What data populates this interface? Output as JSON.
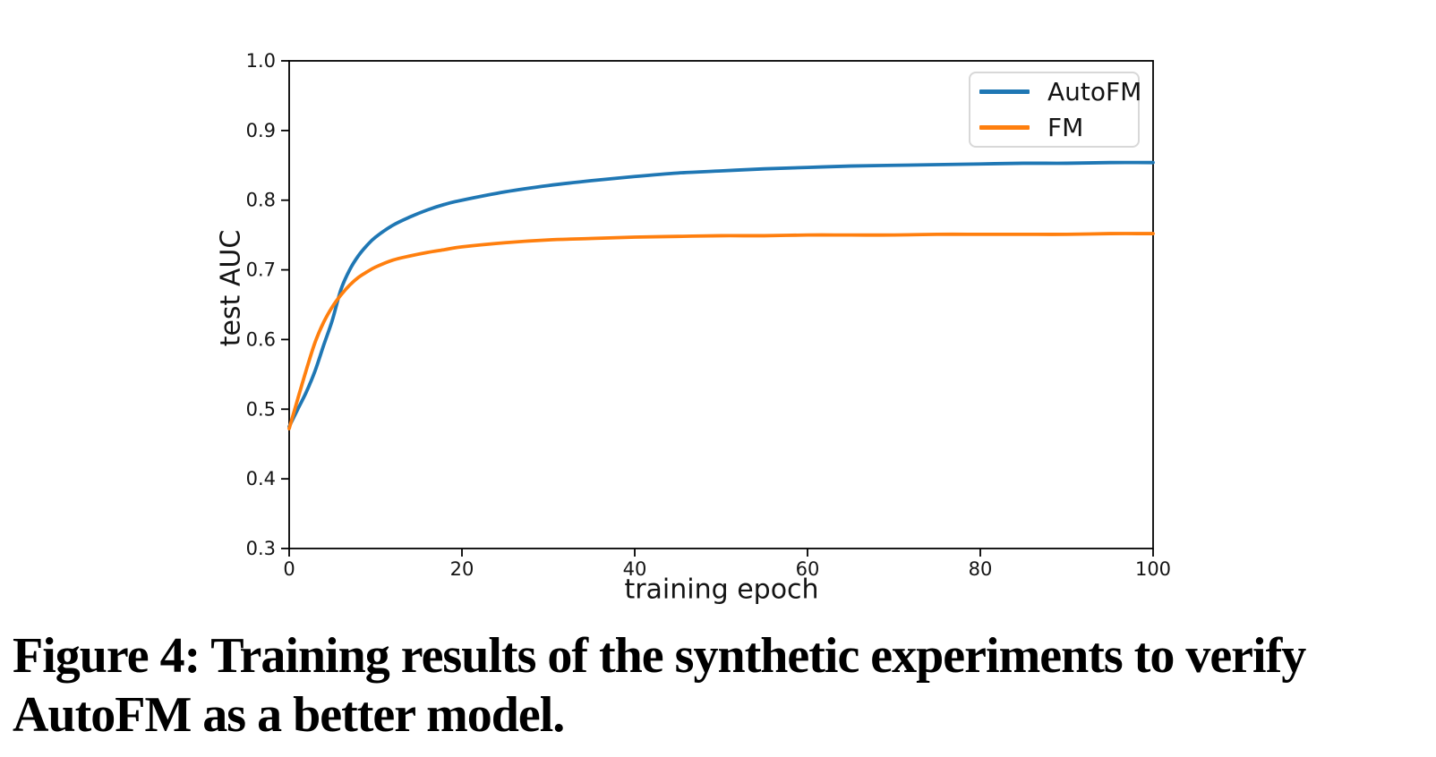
{
  "figure": {
    "caption": {
      "label": "Figure 4:",
      "line1": "Training results of the synthetic experiments to verify",
      "line2": "AutoFM as a better model."
    }
  },
  "chart_data": {
    "type": "line",
    "title": "",
    "xlabel": "training epoch",
    "ylabel": "test AUC",
    "xlim": [
      0,
      100
    ],
    "ylim": [
      0.3,
      1.0
    ],
    "xticks": [
      0,
      20,
      40,
      60,
      80,
      100
    ],
    "yticks": [
      0.3,
      0.4,
      0.5,
      0.6,
      0.7,
      0.8,
      0.9,
      1.0
    ],
    "grid": false,
    "legend_position": "upper right",
    "axis_color": "#000000",
    "series": [
      {
        "name": "AutoFM",
        "color": "#1f77b4",
        "x": [
          0,
          1,
          2,
          3,
          4,
          5,
          6,
          7,
          8,
          9,
          10,
          12,
          14,
          16,
          18,
          20,
          25,
          30,
          35,
          40,
          45,
          50,
          55,
          60,
          65,
          70,
          75,
          80,
          85,
          90,
          95,
          100
        ],
        "y": [
          0.475,
          0.5,
          0.525,
          0.555,
          0.592,
          0.628,
          0.672,
          0.7,
          0.72,
          0.735,
          0.747,
          0.764,
          0.776,
          0.786,
          0.794,
          0.8,
          0.812,
          0.821,
          0.828,
          0.834,
          0.839,
          0.842,
          0.845,
          0.847,
          0.849,
          0.85,
          0.851,
          0.852,
          0.853,
          0.853,
          0.854,
          0.854
        ]
      },
      {
        "name": "FM",
        "color": "#ff7f0e",
        "x": [
          0,
          1,
          2,
          3,
          4,
          5,
          6,
          7,
          8,
          9,
          10,
          12,
          14,
          16,
          18,
          20,
          25,
          30,
          35,
          40,
          45,
          50,
          55,
          60,
          65,
          70,
          75,
          80,
          85,
          90,
          95,
          100
        ],
        "y": [
          0.472,
          0.515,
          0.557,
          0.596,
          0.625,
          0.647,
          0.664,
          0.678,
          0.689,
          0.697,
          0.704,
          0.714,
          0.72,
          0.725,
          0.729,
          0.733,
          0.739,
          0.743,
          0.745,
          0.747,
          0.748,
          0.749,
          0.749,
          0.75,
          0.75,
          0.75,
          0.751,
          0.751,
          0.751,
          0.751,
          0.752,
          0.752
        ]
      }
    ]
  }
}
